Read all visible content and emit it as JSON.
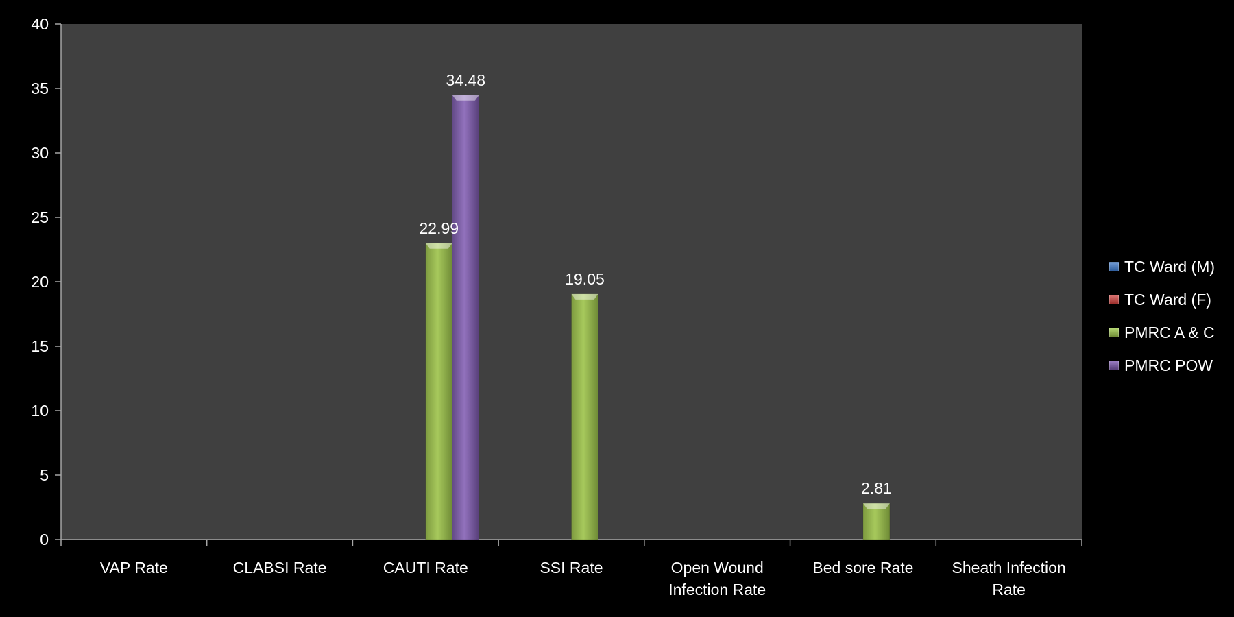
{
  "chart_data": {
    "type": "bar",
    "categories": [
      "VAP Rate",
      "CLABSI Rate",
      "CAUTI Rate",
      "SSI Rate",
      "Open Wound Infection Rate",
      "Bed sore Rate",
      "Sheath Infection Rate"
    ],
    "series": [
      {
        "name": "TC Ward (M)",
        "color": "#4F81BD",
        "values": [
          0,
          0,
          0,
          0,
          0,
          0,
          0
        ]
      },
      {
        "name": "TC Ward (F)",
        "color": "#C0504D",
        "values": [
          0,
          0,
          0,
          0,
          0,
          0,
          0
        ]
      },
      {
        "name": "PMRC A & C",
        "color": "#9BBB59",
        "values": [
          0,
          0,
          22.99,
          19.05,
          0,
          2.81,
          0
        ]
      },
      {
        "name": "PMRC POW",
        "color": "#8064A2",
        "values": [
          0,
          0,
          34.48,
          0,
          0,
          0,
          0
        ]
      }
    ],
    "data_labels": [
      {
        "series": 2,
        "category": 2,
        "text": "22.99"
      },
      {
        "series": 3,
        "category": 2,
        "text": "34.48"
      },
      {
        "series": 2,
        "category": 3,
        "text": "19.05"
      },
      {
        "series": 2,
        "category": 5,
        "text": "2.81"
      }
    ],
    "ylim": [
      0,
      40
    ],
    "yticks": [
      0,
      5,
      10,
      15,
      20,
      25,
      30,
      35,
      40
    ],
    "title": "",
    "xlabel": "",
    "ylabel": "",
    "legend_position": "right",
    "background": "#404040",
    "grid": false
  }
}
